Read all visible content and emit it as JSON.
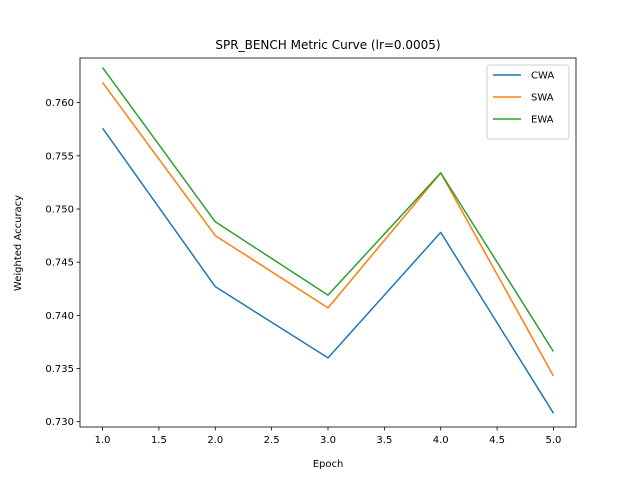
{
  "chart_data": {
    "type": "line",
    "title": "SPR_BENCH Metric Curve (lr=0.0005)",
    "xlabel": "Epoch",
    "ylabel": "Weighted Accuracy",
    "xlim": [
      0.8,
      5.2
    ],
    "ylim": [
      0.7295,
      0.7642
    ],
    "xticks": [
      1.0,
      1.5,
      2.0,
      2.5,
      3.0,
      3.5,
      4.0,
      4.5,
      5.0
    ],
    "xtick_labels": [
      "1.0",
      "1.5",
      "2.0",
      "2.5",
      "3.0",
      "3.5",
      "4.0",
      "4.5",
      "5.0"
    ],
    "yticks": [
      0.73,
      0.735,
      0.74,
      0.745,
      0.75,
      0.755,
      0.76
    ],
    "ytick_labels": [
      "0.730",
      "0.735",
      "0.740",
      "0.745",
      "0.750",
      "0.755",
      "0.760"
    ],
    "x": [
      1,
      2,
      3,
      4,
      5
    ],
    "grid": false,
    "legend_position": "top-right",
    "series": [
      {
        "name": "CWA",
        "color": "#1f77b4",
        "values": [
          0.7576,
          0.7427,
          0.736,
          0.7478,
          0.7308
        ]
      },
      {
        "name": "SWA",
        "color": "#ff7f0e",
        "values": [
          0.7619,
          0.7475,
          0.7407,
          0.7534,
          0.7343
        ]
      },
      {
        "name": "EWA",
        "color": "#2ca02c",
        "values": [
          0.7633,
          0.7488,
          0.7419,
          0.7534,
          0.7366
        ]
      }
    ]
  }
}
